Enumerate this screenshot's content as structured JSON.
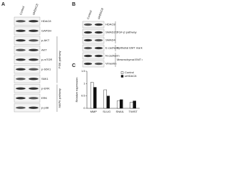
{
  "panel_a": {
    "label": "A",
    "columns": [
      "Control",
      "siHDAC8"
    ],
    "rows": [
      "HDAC8",
      "GAPDH",
      "p-AKT",
      "AKT",
      "p-mTOR",
      "p-S6K1",
      "S6K1",
      "p-ERK",
      "ERK",
      "p-p38"
    ],
    "groups": [
      {
        "label": "PI3K pathway",
        "rows": [
          2,
          6
        ]
      },
      {
        "label": "MAPK pathway",
        "rows": [
          7,
          9
        ]
      }
    ]
  },
  "panel_b": {
    "label": "B",
    "columns": [
      "Control",
      "siHDAC8"
    ],
    "rows": [
      "HDAC8",
      "SMAD2/3",
      "SMAD4",
      "E-cadherin",
      "N-cadherin",
      "Vimentin"
    ],
    "groups": [
      {
        "label": "TGF-β pathway",
        "rows": [
          0,
          2
        ]
      },
      {
        "label": "Epithelial EMT marker",
        "rows": [
          3,
          3
        ]
      },
      {
        "label": "Mesenchymal EMT marker",
        "rows": [
          4,
          5
        ]
      }
    ]
  },
  "panel_c": {
    "label": "C"
  },
  "chart_data": {
    "type": "bar",
    "y_label": "Relative expression",
    "categories": [
      "MMP",
      "SLUG",
      "SNAIL",
      "TWIST"
    ],
    "series": [
      {
        "name": "Control",
        "color": "#ffffff",
        "values": [
          1.05,
          0.75,
          0.3,
          0.25
        ]
      },
      {
        "name": "siHDAC8",
        "color": "#111111",
        "values": [
          0.85,
          0.5,
          0.35,
          0.3
        ]
      }
    ],
    "ylim": [
      0,
      1.5
    ],
    "yticks": [
      0,
      0.5,
      1,
      1.5
    ],
    "legend": "upper-right"
  }
}
